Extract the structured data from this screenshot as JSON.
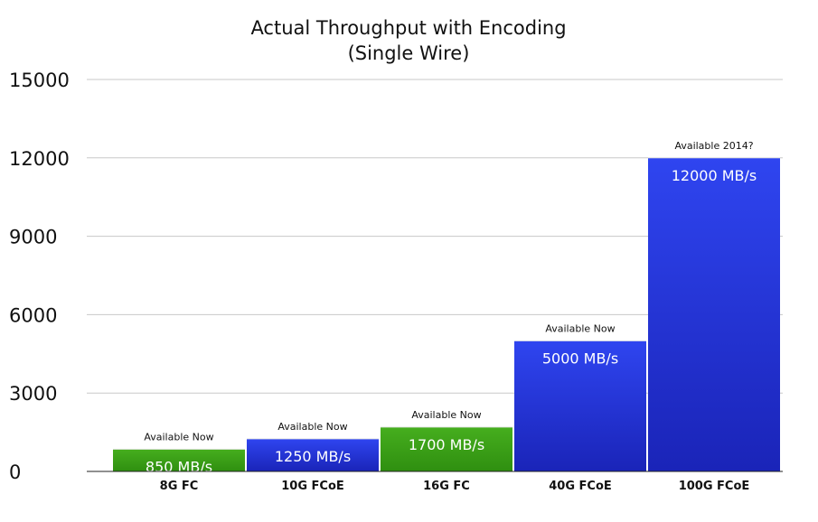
{
  "chart_data": {
    "type": "bar",
    "title": "Actual Throughput with Encoding",
    "subtitle": "(Single Wire)",
    "xlabel": "",
    "ylabel": "",
    "ylim": [
      0,
      15000
    ],
    "yticks": [
      "0",
      "3000",
      "6000",
      "9000",
      "12000",
      "15000"
    ],
    "grid": true,
    "categories": [
      "8G FC",
      "10G FCoE",
      "16G FC",
      "40G FCoE",
      "100G FCoE"
    ],
    "values": [
      850,
      1250,
      1700,
      5000,
      12000
    ],
    "value_labels": [
      "850 MB/s",
      "1250 MB/s",
      "1700 MB/s",
      "5000 MB/s",
      "12000 MB/s"
    ],
    "annotations": [
      "Available Now",
      "Available Now",
      "Available Now",
      "Available Now",
      "Available 2014?"
    ],
    "bar_colors": [
      "#3a9e16",
      "#1f2fd6",
      "#3a9e16",
      "#1f2fd6",
      "#1f2fd6"
    ]
  }
}
